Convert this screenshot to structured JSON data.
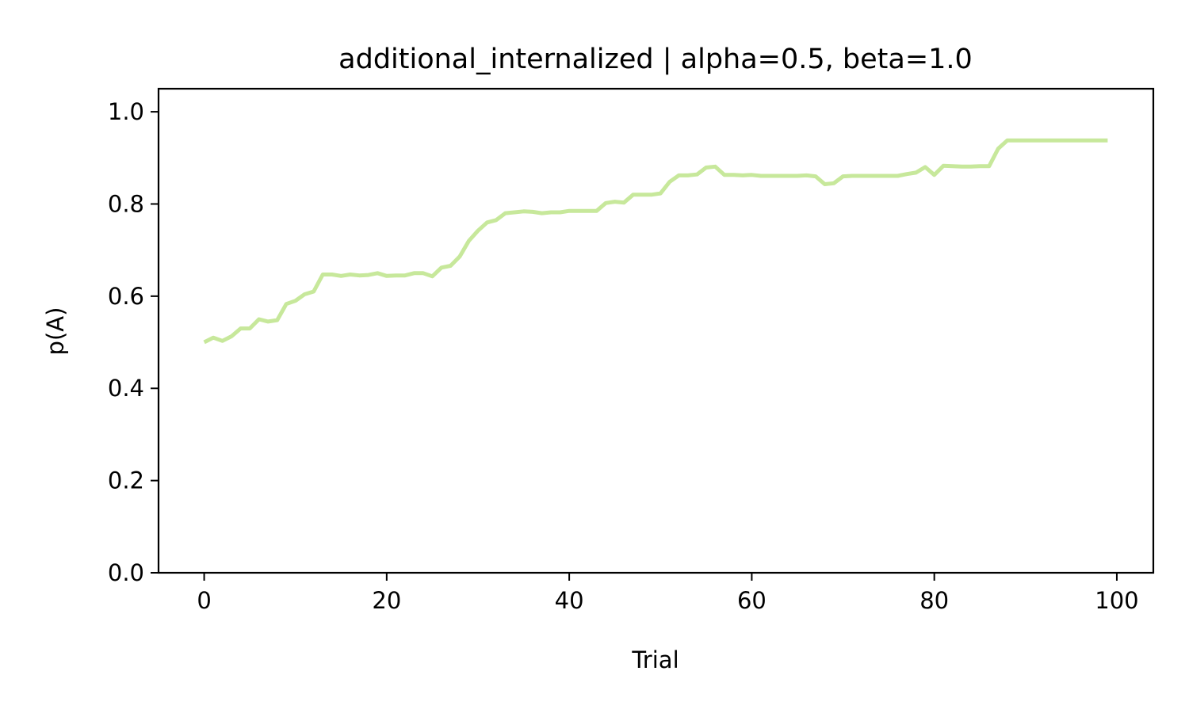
{
  "chart_data": {
    "type": "line",
    "title": "additional_internalized | alpha=0.5, beta=1.0",
    "xlabel": "Trial",
    "ylabel": "p(A)",
    "xlim": [
      -5,
      104
    ],
    "ylim": [
      0.0,
      1.05
    ],
    "xticks": [
      "0",
      "20",
      "40",
      "60",
      "80",
      "100"
    ],
    "yticks": [
      "0.0",
      "0.2",
      "0.4",
      "0.6",
      "0.8",
      "1.0"
    ],
    "grid": false,
    "legend": "none",
    "line_color": "#c7e89b",
    "x": [
      0,
      1,
      2,
      3,
      4,
      5,
      6,
      7,
      8,
      9,
      10,
      11,
      12,
      13,
      14,
      15,
      16,
      17,
      18,
      19,
      20,
      21,
      22,
      23,
      24,
      25,
      26,
      27,
      28,
      29,
      30,
      31,
      32,
      33,
      34,
      35,
      36,
      37,
      38,
      39,
      40,
      41,
      42,
      43,
      44,
      45,
      46,
      47,
      48,
      49,
      50,
      51,
      52,
      53,
      54,
      55,
      56,
      57,
      58,
      59,
      60,
      61,
      62,
      63,
      64,
      65,
      66,
      67,
      68,
      69,
      70,
      71,
      72,
      73,
      74,
      75,
      76,
      77,
      78,
      79,
      80,
      81,
      82,
      83,
      84,
      85,
      86,
      87,
      88,
      89,
      90,
      91,
      92,
      93,
      94,
      95,
      96,
      97,
      98,
      99
    ],
    "series": [
      {
        "values": [
          0.5,
          0.51,
          0.503,
          0.513,
          0.53,
          0.53,
          0.55,
          0.545,
          0.548,
          0.583,
          0.59,
          0.604,
          0.61,
          0.647,
          0.647,
          0.644,
          0.647,
          0.645,
          0.646,
          0.65,
          0.644,
          0.645,
          0.645,
          0.65,
          0.65,
          0.643,
          0.662,
          0.666,
          0.686,
          0.72,
          0.742,
          0.76,
          0.765,
          0.78,
          0.782,
          0.784,
          0.783,
          0.78,
          0.782,
          0.782,
          0.785,
          0.785,
          0.785,
          0.785,
          0.802,
          0.805,
          0.803,
          0.82,
          0.82,
          0.82,
          0.823,
          0.848,
          0.862,
          0.862,
          0.864,
          0.879,
          0.881,
          0.863,
          0.863,
          0.862,
          0.863,
          0.861,
          0.861,
          0.861,
          0.861,
          0.861,
          0.862,
          0.86,
          0.843,
          0.845,
          0.86,
          0.861,
          0.861,
          0.861,
          0.861,
          0.861,
          0.861,
          0.865,
          0.868,
          0.88,
          0.863,
          0.883,
          0.882,
          0.881,
          0.881,
          0.882,
          0.882,
          0.92,
          0.938,
          0.938,
          0.938,
          0.938,
          0.938,
          0.938,
          0.938,
          0.938,
          0.938,
          0.938,
          0.938,
          0.938
        ]
      }
    ]
  }
}
